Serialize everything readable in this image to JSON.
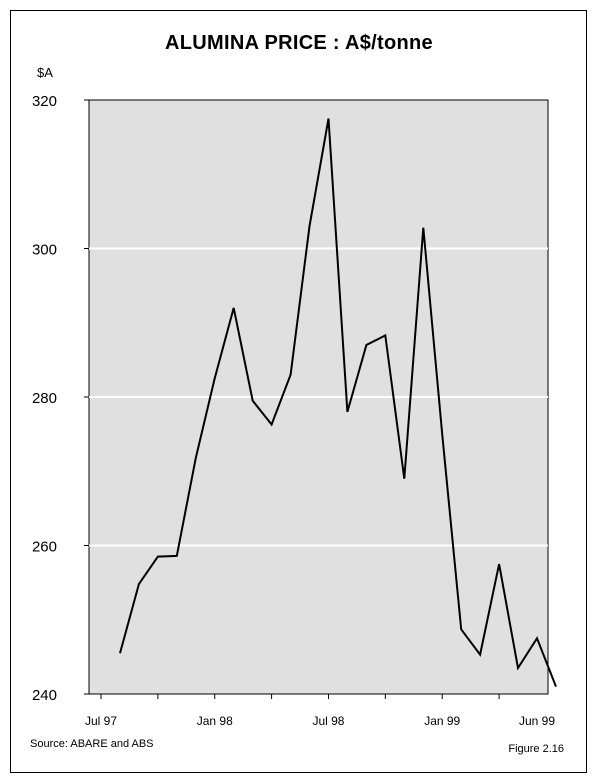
{
  "chart_data": {
    "type": "line",
    "title": "ALUMINA PRICE : A$/tonne",
    "ylabel": "$A",
    "ylim": [
      240,
      320
    ],
    "yticks": [
      240,
      260,
      280,
      300,
      320
    ],
    "xtick_labels": [
      "Jul 97",
      "Jan 98",
      "Jul 98",
      "Jan 99",
      "Jun 99"
    ],
    "xlim_months": [
      "Jul 97",
      "Jun 99"
    ],
    "grid": "horizontal",
    "series": [
      {
        "color": "#000000",
        "points": [
          {
            "x": "Aug 97",
            "y": 245.5
          },
          {
            "x": "Sep 97",
            "y": 254.8
          },
          {
            "x": "Oct 97",
            "y": 258.5
          },
          {
            "x": "Nov 97",
            "y": 258.6
          },
          {
            "x": "Dec 97",
            "y": 271.8
          },
          {
            "x": "Jan 98",
            "y": 282.5
          },
          {
            "x": "Feb 98",
            "y": 292.0
          },
          {
            "x": "Mar 98",
            "y": 279.5
          },
          {
            "x": "Apr 98",
            "y": 276.3
          },
          {
            "x": "May 98",
            "y": 283.0
          },
          {
            "x": "Jun 98",
            "y": 303.0
          },
          {
            "x": "Jul 98",
            "y": 317.5
          },
          {
            "x": "Aug 98",
            "y": 278.0
          },
          {
            "x": "Sep 98",
            "y": 287.0
          },
          {
            "x": "Oct 98",
            "y": 288.3
          },
          {
            "x": "Nov 98",
            "y": 269.0
          },
          {
            "x": "Dec 98",
            "y": 302.8
          },
          {
            "x": "Jan 99",
            "y": 275.0
          },
          {
            "x": "Feb 99",
            "y": 248.7
          },
          {
            "x": "Mar 99",
            "y": 245.3
          },
          {
            "x": "Apr 99",
            "y": 257.5
          },
          {
            "x": "May 99",
            "y": 243.5
          },
          {
            "x": "Jun 99",
            "y": 247.5
          },
          {
            "x": "Jul 99",
            "y": 241.0
          }
        ]
      }
    ]
  },
  "footer": {
    "source": "Source: ABARE and ABS",
    "figure": "Figure 2.16"
  }
}
